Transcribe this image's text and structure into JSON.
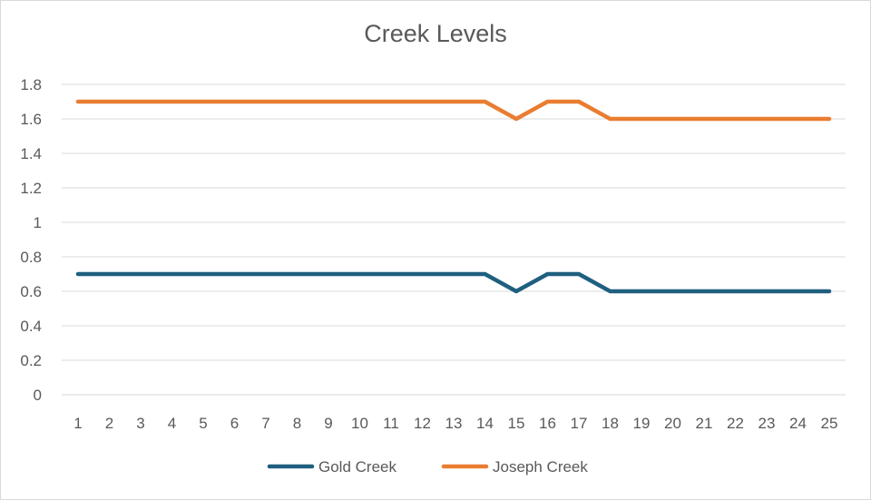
{
  "colors": {
    "gold_creek": "#1f5f7f",
    "joseph_creek": "#e97d31",
    "grid": "#d9d9d9",
    "text": "#595959"
  },
  "chart_data": {
    "type": "line",
    "title": "Creek Levels",
    "xlabel": "",
    "ylabel": "",
    "x": [
      "1",
      "2",
      "3",
      "4",
      "5",
      "6",
      "7",
      "8",
      "9",
      "10",
      "11",
      "12",
      "13",
      "14",
      "15",
      "16",
      "17",
      "18",
      "19",
      "20",
      "21",
      "22",
      "23",
      "24",
      "25"
    ],
    "y_ticks": [
      "0",
      "0.2",
      "0.4",
      "0.6",
      "0.8",
      "1",
      "1.2",
      "1.4",
      "1.6",
      "1.8"
    ],
    "ylim": [
      0,
      1.8
    ],
    "grid": true,
    "legend_position": "bottom",
    "series": [
      {
        "name": "Gold Creek",
        "color": "#1f5f7f",
        "values": [
          0.7,
          0.7,
          0.7,
          0.7,
          0.7,
          0.7,
          0.7,
          0.7,
          0.7,
          0.7,
          0.7,
          0.7,
          0.7,
          0.7,
          0.6,
          0.7,
          0.7,
          0.6,
          0.6,
          0.6,
          0.6,
          0.6,
          0.6,
          0.6,
          0.6
        ]
      },
      {
        "name": "Joseph Creek",
        "color": "#e97d31",
        "values": [
          1.7,
          1.7,
          1.7,
          1.7,
          1.7,
          1.7,
          1.7,
          1.7,
          1.7,
          1.7,
          1.7,
          1.7,
          1.7,
          1.7,
          1.6,
          1.7,
          1.7,
          1.6,
          1.6,
          1.6,
          1.6,
          1.6,
          1.6,
          1.6,
          1.6
        ]
      }
    ]
  }
}
